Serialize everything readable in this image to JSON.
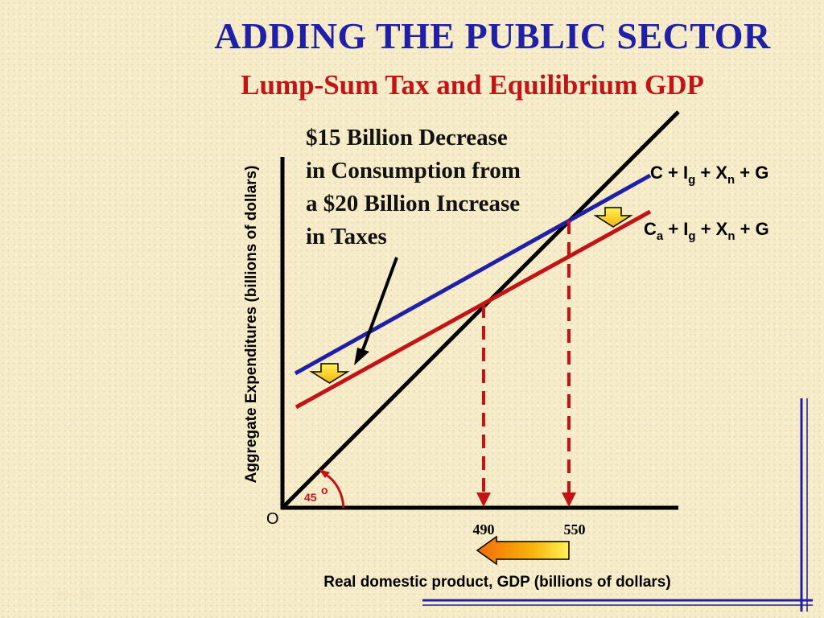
{
  "title": "ADDING THE PUBLIC SECTOR",
  "subtitle": "Lump-Sum Tax and Equilibrium GDP",
  "annotation": {
    "line1": "$15 Billion Decrease",
    "line2": "in Consumption from",
    "line3": "a $20 Billion Increase",
    "line4": "in Taxes"
  },
  "curve_labels": {
    "upper": {
      "p1": "C + I",
      "s1": "g",
      "p2": " + X",
      "s2": "n",
      "p3": " + G"
    },
    "lower": {
      "p0": "C",
      "s0": "a",
      "p1": " + I",
      "s1": "g",
      "p2": " + X",
      "s2": "n",
      "p3": " + G"
    }
  },
  "axes": {
    "y_title": "Aggregate Expenditures (billions of dollars)",
    "x_title": "Real domestic product, GDP (billions of dollars)",
    "origin": "O",
    "angle_label": "45",
    "angle_degree": "o"
  },
  "ticks": {
    "x1": "490",
    "x2": "550"
  },
  "footer": "20 - 28",
  "colors": {
    "title": "#1f1fa8",
    "subtitle": "#c21416",
    "upper_line": "#1f1fa8",
    "lower_line": "#c21416",
    "arrow_fill": "#f7d40a",
    "frame": "#1f1fa8"
  }
}
